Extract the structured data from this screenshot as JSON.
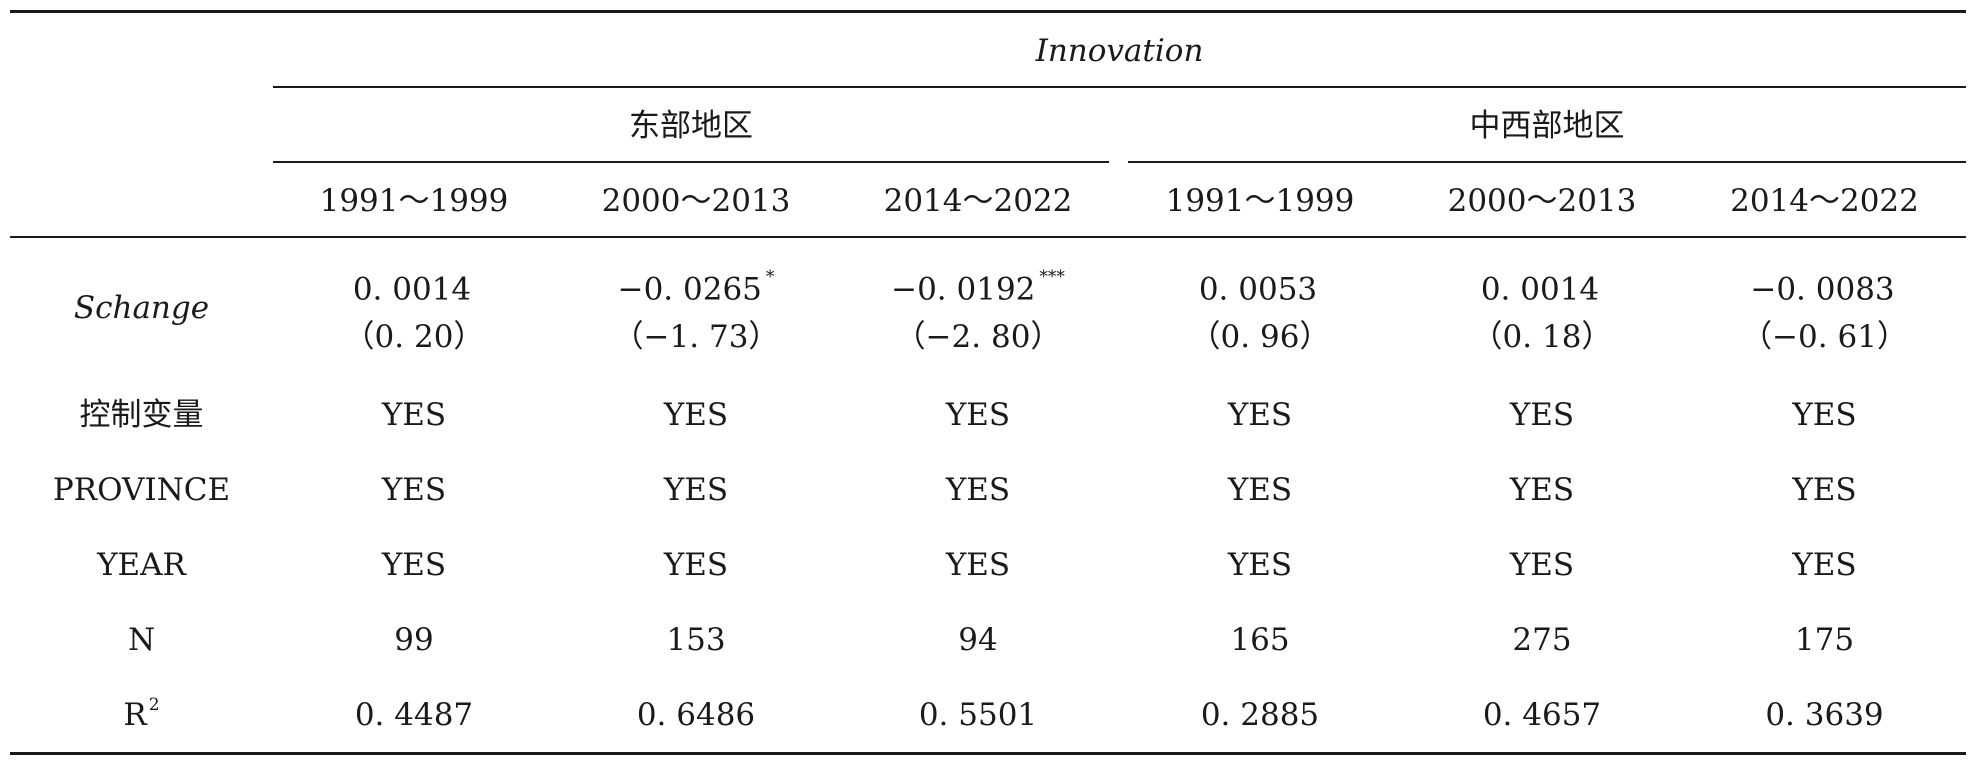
{
  "header": {
    "dependent_variable": "Innovation",
    "regions": [
      "东部地区",
      "中西部地区"
    ],
    "periods": [
      "1991～1999",
      "2000～2013",
      "2014～2022",
      "1991～1999",
      "2000～2013",
      "2014～2022"
    ]
  },
  "rows": [
    {
      "label": "Schange",
      "coefficients": [
        "0. 0014",
        "−0. 0265",
        "−0. 0192",
        "0. 0053",
        "0. 0014",
        "−0. 0083"
      ],
      "significance": [
        "",
        "*",
        "***",
        "",
        "",
        ""
      ],
      "t_values": [
        "（0. 20）",
        "（−1. 73）",
        "（−2. 80）",
        "（0. 96）",
        "（0. 18）",
        "（−0. 61）"
      ]
    },
    {
      "label": "控制变量",
      "values": [
        "YES",
        "YES",
        "YES",
        "YES",
        "YES",
        "YES"
      ]
    },
    {
      "label": "PROVINCE",
      "values": [
        "YES",
        "YES",
        "YES",
        "YES",
        "YES",
        "YES"
      ]
    },
    {
      "label": "YEAR",
      "values": [
        "YES",
        "YES",
        "YES",
        "YES",
        "YES",
        "YES"
      ]
    },
    {
      "label": "N",
      "values": [
        "99",
        "153",
        "94",
        "165",
        "275",
        "175"
      ]
    },
    {
      "label": "R",
      "label_superscript": "2",
      "values": [
        "0. 4487",
        "0. 6486",
        "0. 5501",
        "0. 2885",
        "0. 4657",
        "0. 3639"
      ]
    }
  ]
}
